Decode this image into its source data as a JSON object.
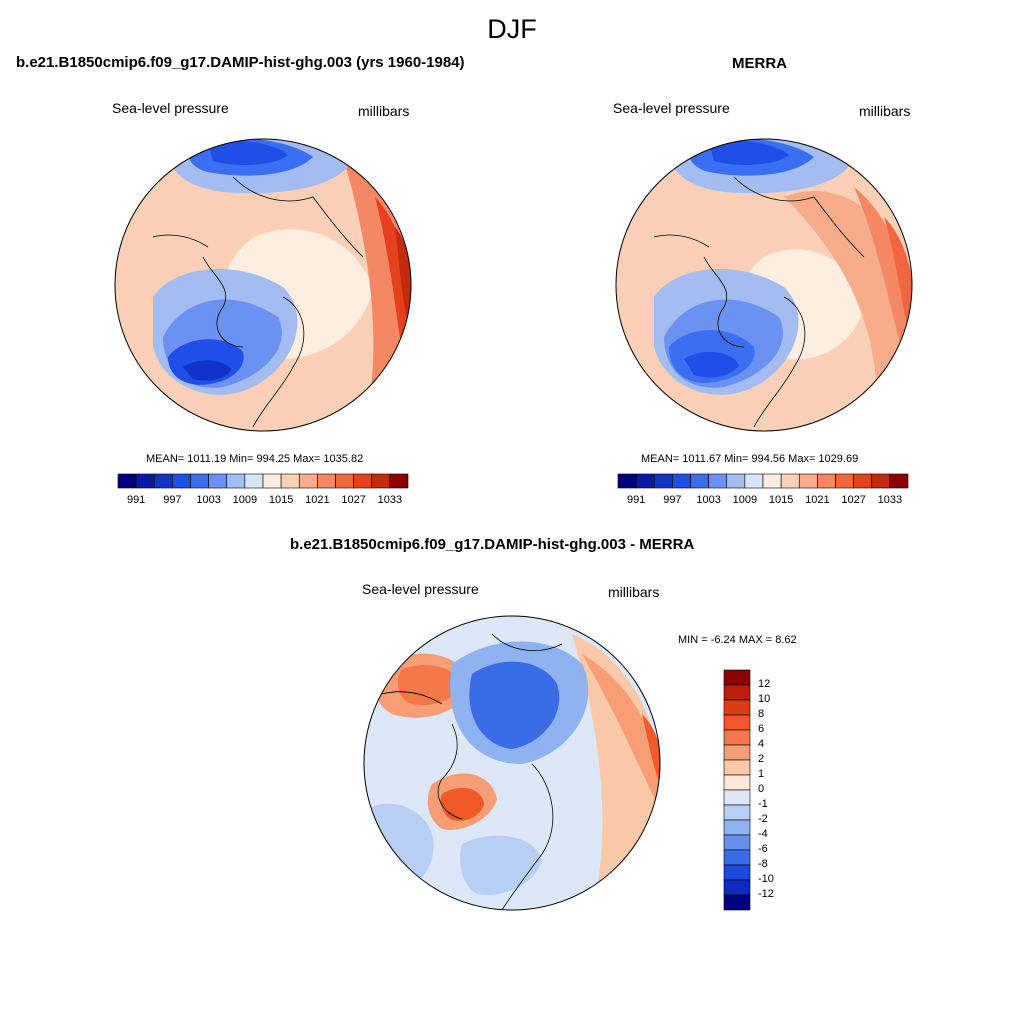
{
  "main_title": "DJF",
  "colors": {
    "sequential": [
      "#00007f",
      "#0a1aa6",
      "#1233c9",
      "#1f4fe6",
      "#3b6ff2",
      "#6b92f2",
      "#a3bdf3",
      "#d6e5f8",
      "#fdeee2",
      "#fbd0b6",
      "#f7ad8b",
      "#f48864",
      "#f2663f",
      "#e6401d",
      "#c42a0c",
      "#8c0000"
    ],
    "difference": [
      "#8c0000",
      "#b8200a",
      "#dc3c12",
      "#f05a28",
      "#f4784a",
      "#f79e76",
      "#fbc8a8",
      "#fde8d8",
      "#dce8f8",
      "#b7cff5",
      "#8eb2f2",
      "#6590ee",
      "#3a6ce8",
      "#1a4ade",
      "#0b2cbc",
      "#000080"
    ]
  },
  "panels": [
    {
      "title": "b.e21.B1850cmip6.f09_g17.DAMIP-hist-ghg.003 (yrs 1960-1984)",
      "left_label": "Sea-level pressure",
      "right_label": "millibars",
      "stats": "MEAN= 1011.19  Min= 994.25  Max= 1035.82",
      "colorbar_ticks": [
        "991",
        "997",
        "1003",
        "1009",
        "1015",
        "1021",
        "1027",
        "1033"
      ]
    },
    {
      "title": "MERRA",
      "left_label": "Sea-level pressure",
      "right_label": "millibars",
      "stats": "MEAN= 1011.67  Min= 994.56  Max= 1029.69",
      "colorbar_ticks": [
        "991",
        "997",
        "1003",
        "1009",
        "1015",
        "1021",
        "1027",
        "1033"
      ]
    },
    {
      "title": "b.e21.B1850cmip6.f09_g17.DAMIP-hist-ghg.003 - MERRA",
      "left_label": "Sea-level pressure",
      "right_label": "millibars",
      "stats": "MIN =  -6.24 MAX =   8.62",
      "colorbar_ticks": [
        "12",
        "10",
        "8",
        "6",
        "4",
        "2",
        "1",
        "0",
        "-1",
        "-2",
        "-4",
        "-6",
        "-8",
        "-10",
        "-12"
      ]
    }
  ]
}
